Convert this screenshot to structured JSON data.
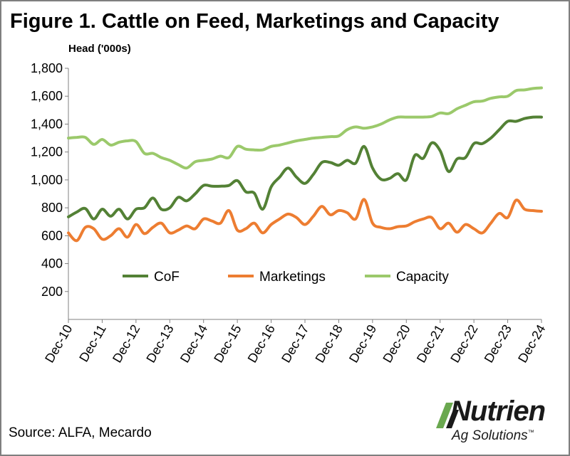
{
  "header": {
    "title": "Figure 1. Cattle on Feed, Marketings and Capacity"
  },
  "footer": {
    "source": "Source: ALFA, Mecardo"
  },
  "brand": {
    "name": "Nutrien",
    "tagline": "Ag Solutions",
    "tagline_mark": "™",
    "color": "#1a1a1a",
    "accent": "#6aa84f"
  },
  "chart_data": {
    "type": "line",
    "title": "Figure 1. Cattle on Feed, Marketings and Capacity",
    "ylabel": "Head ('000s)",
    "xlabel": "",
    "ylim": [
      0,
      1800
    ],
    "yticks": [
      200,
      400,
      600,
      800,
      1000,
      1200,
      1400,
      1600,
      1800
    ],
    "ytick_labels": [
      "200",
      "400",
      "600",
      "800",
      "1,000",
      "1,200",
      "1,400",
      "1,600",
      "1,800"
    ],
    "xlim": [
      2010.917,
      2024.917
    ],
    "xticks": [
      2010.917,
      2011.917,
      2012.917,
      2013.917,
      2014.917,
      2015.917,
      2016.917,
      2017.917,
      2018.917,
      2019.917,
      2020.917,
      2021.917,
      2022.917,
      2023.917,
      2024.917
    ],
    "xtick_labels": [
      "Dec-10",
      "Dec-11",
      "Dec-12",
      "Dec-13",
      "Dec-14",
      "Dec-15",
      "Dec-16",
      "Dec-17",
      "Dec-18",
      "Dec-19",
      "Dec-20",
      "Dec-21",
      "Dec-22",
      "Dec-23",
      "Dec-24"
    ],
    "grid": false,
    "legend_position": "inside-center",
    "series": [
      {
        "name": "CoF",
        "color": "#538135",
        "x": [
          2010.917,
          2011.167,
          2011.417,
          2011.667,
          2011.917,
          2012.167,
          2012.417,
          2012.667,
          2012.917,
          2013.167,
          2013.417,
          2013.667,
          2013.917,
          2014.167,
          2014.417,
          2014.667,
          2014.917,
          2015.167,
          2015.417,
          2015.667,
          2015.917,
          2016.167,
          2016.417,
          2016.667,
          2016.917,
          2017.167,
          2017.417,
          2017.667,
          2017.917,
          2018.167,
          2018.417,
          2018.667,
          2018.917,
          2019.167,
          2019.417,
          2019.667,
          2019.917,
          2020.167,
          2020.417,
          2020.667,
          2020.917,
          2021.167,
          2021.417,
          2021.667,
          2021.917,
          2022.167,
          2022.417,
          2022.667,
          2022.917,
          2023.167,
          2023.417,
          2023.667,
          2023.917,
          2024.167,
          2024.417,
          2024.667,
          2024.917
        ],
        "values": [
          735,
          770,
          795,
          720,
          790,
          740,
          790,
          720,
          790,
          800,
          870,
          790,
          800,
          875,
          850,
          900,
          960,
          955,
          955,
          960,
          995,
          915,
          905,
          790,
          950,
          1020,
          1085,
          1020,
          975,
          1040,
          1125,
          1125,
          1105,
          1140,
          1120,
          1240,
          1085,
          1005,
          1010,
          1045,
          1000,
          1175,
          1155,
          1265,
          1210,
          1060,
          1150,
          1160,
          1260,
          1260,
          1300,
          1360,
          1420,
          1420,
          1440,
          1450,
          1450
        ]
      },
      {
        "name": "Marketings",
        "color": "#ed7d31",
        "x": [
          2010.917,
          2011.167,
          2011.417,
          2011.667,
          2011.917,
          2012.167,
          2012.417,
          2012.667,
          2012.917,
          2013.167,
          2013.417,
          2013.667,
          2013.917,
          2014.167,
          2014.417,
          2014.667,
          2014.917,
          2015.167,
          2015.417,
          2015.667,
          2015.917,
          2016.167,
          2016.417,
          2016.667,
          2016.917,
          2017.167,
          2017.417,
          2017.667,
          2017.917,
          2018.167,
          2018.417,
          2018.667,
          2018.917,
          2019.167,
          2019.417,
          2019.667,
          2019.917,
          2020.167,
          2020.417,
          2020.667,
          2020.917,
          2021.167,
          2021.417,
          2021.667,
          2021.917,
          2022.167,
          2022.417,
          2022.667,
          2022.917,
          2023.167,
          2023.417,
          2023.667,
          2023.917,
          2024.167,
          2024.417,
          2024.667,
          2024.917
        ],
        "values": [
          620,
          565,
          660,
          650,
          575,
          600,
          650,
          590,
          680,
          615,
          660,
          690,
          620,
          640,
          670,
          650,
          720,
          705,
          690,
          780,
          640,
          650,
          690,
          620,
          680,
          720,
          755,
          730,
          680,
          740,
          810,
          750,
          780,
          765,
          720,
          860,
          690,
          660,
          650,
          665,
          670,
          700,
          720,
          730,
          650,
          690,
          625,
          680,
          650,
          620,
          690,
          760,
          730,
          855,
          790,
          780,
          775
        ]
      },
      {
        "name": "Capacity",
        "color": "#9bc96b",
        "x": [
          2010.917,
          2011.167,
          2011.417,
          2011.667,
          2011.917,
          2012.167,
          2012.417,
          2012.667,
          2012.917,
          2013.167,
          2013.417,
          2013.667,
          2013.917,
          2014.167,
          2014.417,
          2014.667,
          2014.917,
          2015.167,
          2015.417,
          2015.667,
          2015.917,
          2016.167,
          2016.417,
          2016.667,
          2016.917,
          2017.167,
          2017.417,
          2017.667,
          2017.917,
          2018.167,
          2018.417,
          2018.667,
          2018.917,
          2019.167,
          2019.417,
          2019.667,
          2019.917,
          2020.167,
          2020.417,
          2020.667,
          2020.917,
          2021.167,
          2021.417,
          2021.667,
          2021.917,
          2022.167,
          2022.417,
          2022.667,
          2022.917,
          2023.167,
          2023.417,
          2023.667,
          2023.917,
          2024.167,
          2024.417,
          2024.667,
          2024.917
        ],
        "values": [
          1300,
          1305,
          1305,
          1255,
          1290,
          1250,
          1270,
          1280,
          1275,
          1190,
          1190,
          1160,
          1140,
          1110,
          1085,
          1130,
          1140,
          1150,
          1170,
          1160,
          1240,
          1220,
          1215,
          1215,
          1240,
          1250,
          1265,
          1280,
          1290,
          1300,
          1305,
          1310,
          1315,
          1360,
          1380,
          1370,
          1380,
          1400,
          1430,
          1450,
          1450,
          1450,
          1450,
          1455,
          1480,
          1475,
          1510,
          1535,
          1560,
          1565,
          1585,
          1595,
          1600,
          1640,
          1645,
          1655,
          1660
        ]
      }
    ]
  }
}
